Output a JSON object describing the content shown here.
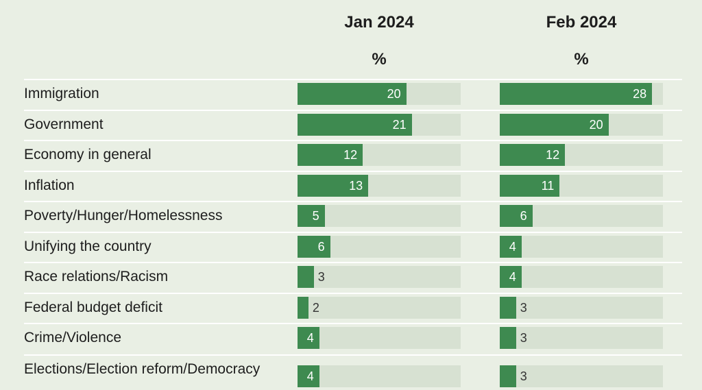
{
  "chart_data": {
    "type": "bar",
    "categories": [
      "Immigration",
      "Government",
      "Economy in general",
      "Inflation",
      "Poverty/Hunger/Homelessness",
      "Unifying the country",
      "Race relations/Racism",
      "Federal budget deficit",
      "Crime/Violence",
      "Elections/Election reform/Democracy"
    ],
    "series": [
      {
        "name": "Jan 2024",
        "unit": "%",
        "color": "#3e8a50",
        "values": [
          20,
          21,
          12,
          13,
          5,
          6,
          3,
          2,
          4,
          4
        ]
      },
      {
        "name": "Feb 2024",
        "unit": "%",
        "color": "#3e8a50",
        "values": [
          28,
          20,
          12,
          11,
          6,
          4,
          4,
          3,
          3,
          3
        ]
      }
    ],
    "xlim": [
      0,
      30
    ]
  }
}
